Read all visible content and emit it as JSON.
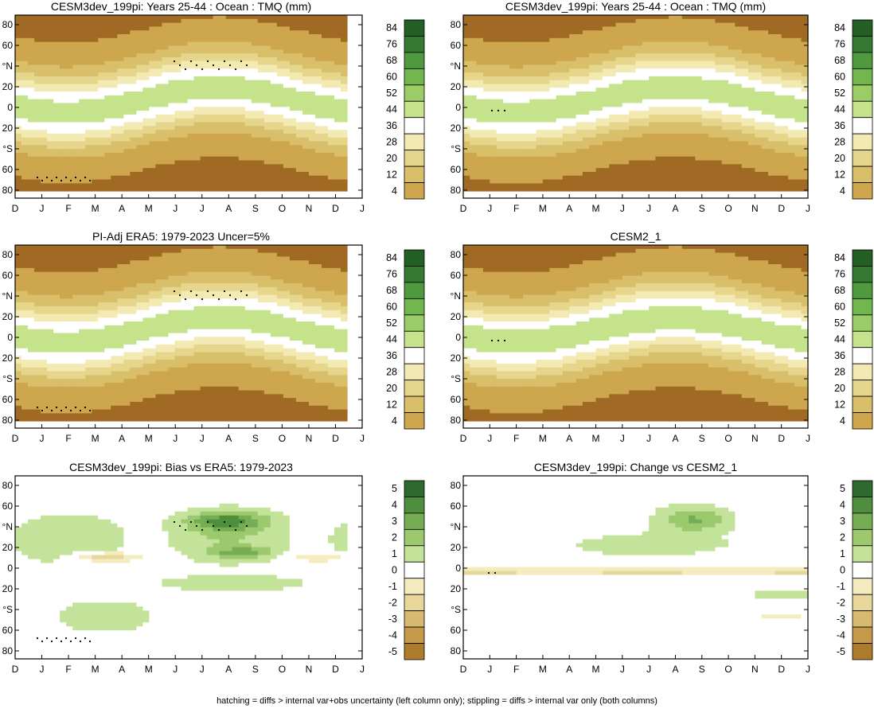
{
  "chart_data": [
    {
      "type": "heatmap",
      "title": "CESM3dev_199pi: Years 25-44 : Ocean : TMQ (mm)",
      "kind": "abs",
      "x_ticks": [
        "D",
        "J",
        "F",
        "M",
        "A",
        "M",
        "J",
        "J",
        "A",
        "S",
        "O",
        "N",
        "D",
        "J"
      ],
      "y_ticks": [
        "80",
        "60",
        "°N",
        "20",
        "0",
        "20",
        "°S",
        "60",
        "80"
      ],
      "ylim": [
        -90,
        90
      ],
      "colorbar_levels": [
        "84",
        "76",
        "68",
        "60",
        "52",
        "44",
        "36",
        "28",
        "20",
        "12",
        "4"
      ],
      "stipple_note": "stippling in NH summer around 40-50°N and SH around 60-70°S"
    },
    {
      "type": "heatmap",
      "title": "CESM3dev_199pi: Years 25-44 : Ocean : TMQ (mm)",
      "kind": "abs",
      "x_ticks": [
        "D",
        "J",
        "F",
        "M",
        "A",
        "M",
        "J",
        "J",
        "A",
        "S",
        "O",
        "N",
        "D",
        "J"
      ],
      "y_ticks": [
        "80",
        "60",
        "°N",
        "20",
        "0",
        "20",
        "°S",
        "60",
        "80"
      ],
      "ylim": [
        -90,
        90
      ],
      "colorbar_levels": [
        "84",
        "76",
        "68",
        "60",
        "52",
        "44",
        "36",
        "28",
        "20",
        "12",
        "4"
      ]
    },
    {
      "type": "heatmap",
      "title": "PI-Adj ERA5: 1979-2023 Uncer=5%",
      "kind": "abs",
      "x_ticks": [
        "D",
        "J",
        "F",
        "M",
        "A",
        "M",
        "J",
        "J",
        "A",
        "S",
        "O",
        "N",
        "D",
        "J"
      ],
      "y_ticks": [
        "80",
        "60",
        "°N",
        "20",
        "0",
        "20",
        "°S",
        "60",
        "80"
      ],
      "ylim": [
        -90,
        90
      ],
      "colorbar_levels": [
        "84",
        "76",
        "68",
        "60",
        "52",
        "44",
        "36",
        "28",
        "20",
        "12",
        "4"
      ]
    },
    {
      "type": "heatmap",
      "title": "CESM2_1",
      "kind": "abs",
      "x_ticks": [
        "D",
        "J",
        "F",
        "M",
        "A",
        "M",
        "J",
        "J",
        "A",
        "S",
        "O",
        "N",
        "D",
        "J"
      ],
      "y_ticks": [
        "80",
        "60",
        "°N",
        "20",
        "0",
        "20",
        "°S",
        "60",
        "80"
      ],
      "ylim": [
        -90,
        90
      ],
      "colorbar_levels": [
        "84",
        "76",
        "68",
        "60",
        "52",
        "44",
        "36",
        "28",
        "20",
        "12",
        "4"
      ]
    },
    {
      "type": "heatmap",
      "title": "CESM3dev_199pi: Bias vs ERA5: 1979-2023",
      "kind": "diff",
      "x_ticks": [
        "D",
        "J",
        "F",
        "M",
        "A",
        "M",
        "J",
        "J",
        "A",
        "S",
        "O",
        "N",
        "D",
        "J"
      ],
      "y_ticks": [
        "80",
        "60",
        "°N",
        "20",
        "0",
        "20",
        "°S",
        "60",
        "80"
      ],
      "ylim": [
        -90,
        90
      ],
      "colorbar_levels": [
        "5",
        "4",
        "3",
        "2",
        "1",
        "0",
        "-1",
        "-2",
        "-3",
        "-4",
        "-5"
      ]
    },
    {
      "type": "heatmap",
      "title": "CESM3dev_199pi: Change vs CESM2_1",
      "kind": "diff",
      "x_ticks": [
        "D",
        "J",
        "F",
        "M",
        "A",
        "M",
        "J",
        "J",
        "A",
        "S",
        "O",
        "N",
        "D",
        "J"
      ],
      "y_ticks": [
        "80",
        "60",
        "°N",
        "20",
        "0",
        "20",
        "°S",
        "60",
        "80"
      ],
      "ylim": [
        -90,
        90
      ],
      "colorbar_levels": [
        "5",
        "4",
        "3",
        "2",
        "1",
        "0",
        "-1",
        "-2",
        "-3",
        "-4",
        "-5"
      ]
    }
  ],
  "colors": {
    "abs_scale": [
      "#245f26",
      "#347a33",
      "#4f9a3e",
      "#73b54f",
      "#9acc67",
      "#c4e38b",
      "#ffffff",
      "#f2eab2",
      "#e6d68c",
      "#d9bf6a",
      "#cda64d",
      "#c08f38",
      "#b07a2b",
      "#a06a25"
    ],
    "diff_scale": [
      "#2e6a30",
      "#4d8f3d",
      "#74ad53",
      "#9cc86e",
      "#c4e39a",
      "#ffffff",
      "#f4ecbf",
      "#e7d79b",
      "#d7ba70",
      "#c49a48",
      "#ae7b2c"
    ]
  },
  "footnote": "hatching = diffs > internal var+obs uncertainty (left column only); stippling = diffs > internal var only (both columns)"
}
